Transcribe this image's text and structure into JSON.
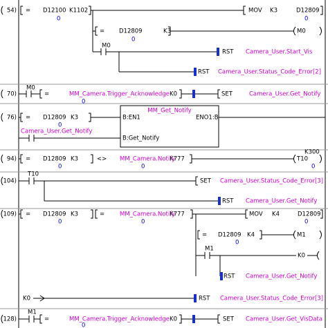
{
  "rungs": [
    {
      "step": "54)",
      "texts": [
        "=",
        "D12100",
        "K1102",
        "0",
        "MOV",
        "K3",
        "D12809",
        "0",
        "=",
        "D12809",
        "K3",
        "0",
        "M0",
        "M0",
        "RST",
        "Camera_User.Start_Vis",
        "RST",
        "Camera_User.Status_Code_Error[2]"
      ]
    },
    {
      "step": "70)",
      "texts": [
        "M0",
        "=",
        "MM_Camera.Trigger_Acknowledge",
        "0",
        "K0",
        "SET",
        "Camera_User.Get_Notify"
      ]
    },
    {
      "step": "76)",
      "texts": [
        "=",
        "D12809",
        "K3",
        "0",
        "MM_Get_Notify",
        "B:EN1",
        "ENO1:B",
        "B:Get_Notify",
        "Camera_User.Get_Notify"
      ]
    },
    {
      "step": "94)",
      "texts": [
        "=",
        "D12809",
        "K3",
        "0",
        "<>",
        "MM_Camera.Notify",
        "K777",
        "0",
        "K300",
        "T10",
        "0"
      ]
    },
    {
      "step": "104)",
      "texts": [
        "T10",
        "SET",
        "Camera_User.Status_Code_Error[3]",
        "RST",
        "Camera_User.Get_Notify"
      ]
    },
    {
      "step": "109)",
      "texts": [
        "=",
        "D12809",
        "K3",
        "0",
        "=",
        "MM_Camera.Notify",
        "K777",
        "0",
        "MOV",
        "K4",
        "D12809",
        "0",
        "=",
        "D12809",
        "K4",
        "0",
        "M1",
        "M1",
        "K0",
        "RST",
        "Camera_User.Get_Notify",
        "K0",
        "RST",
        "Camera_User.Status_Code_Error[3]"
      ]
    },
    {
      "step": "128)",
      "texts": [
        "M1",
        "=",
        "MM_Camera.Trigger_Acknowledge",
        "0",
        "K0",
        "SET",
        "Camera_User.Get_VisData"
      ]
    }
  ]
}
